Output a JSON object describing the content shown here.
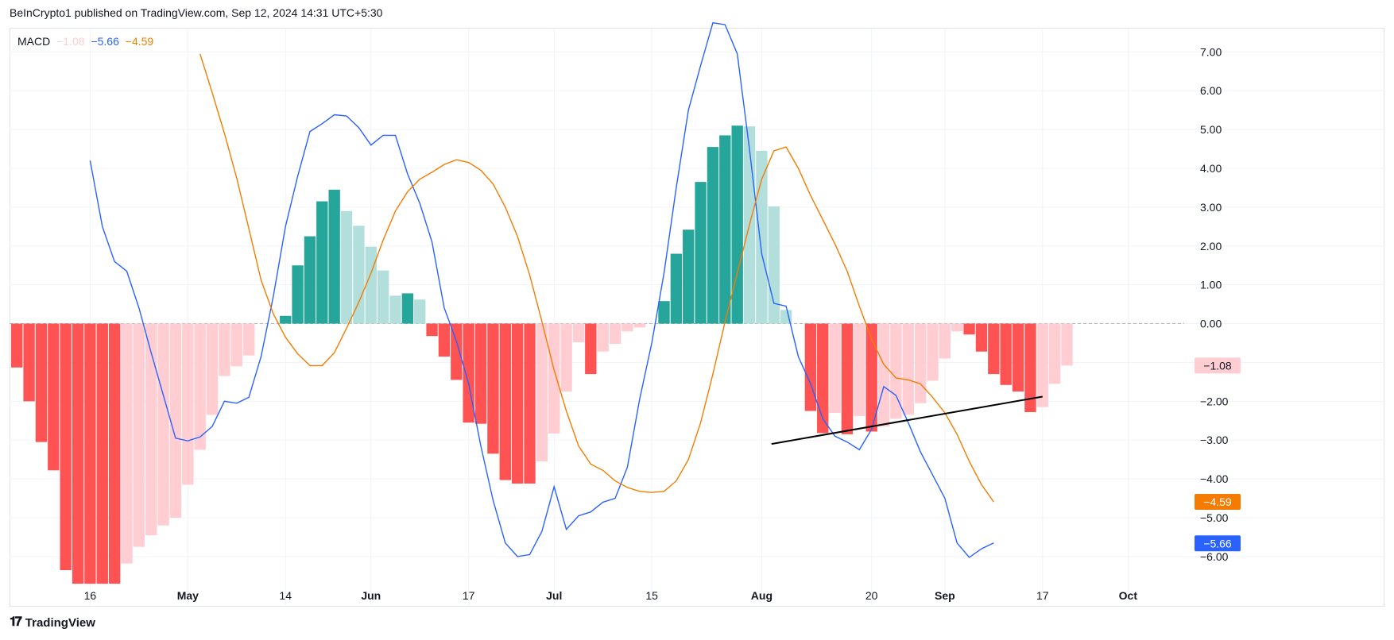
{
  "header": {
    "publisher_line": "BeInCrypto1 published on TradingView.com, Sep 12, 2024 14:31 UTC+5:30"
  },
  "legend": {
    "name": "MACD",
    "histogram_value": "−1.08",
    "macd_value": "−5.66",
    "signal_value": "−4.59"
  },
  "footer": {
    "brand": "TradingView"
  },
  "colors": {
    "macd": "#2962ff",
    "signal": "#f57c00",
    "hist_pos_strong": "#26a69a",
    "hist_pos_weak": "#b2dfdb",
    "hist_neg_strong": "#ff5252",
    "hist_neg_weak": "#ffcdd2",
    "trendline": "#000000",
    "grid": "#f0f3fa",
    "zero_line": "#b2b5be"
  },
  "chart_data": {
    "type": "line",
    "title": "MACD",
    "y_ticks": [
      "7.00",
      "6.00",
      "5.00",
      "4.00",
      "3.00",
      "2.00",
      "1.00",
      "0.00",
      "−1.00",
      "−2.00",
      "−3.00",
      "−4.00",
      "−5.00",
      "−6.00"
    ],
    "y_tick_values": [
      7,
      6,
      5,
      4,
      3,
      2,
      1,
      0,
      -1,
      -2,
      -3,
      -4,
      -5,
      -6
    ],
    "ylim": [
      -6.8,
      7.6
    ],
    "x_labels": [
      {
        "text": "16",
        "index": 6,
        "bold": false
      },
      {
        "text": "May",
        "index": 14,
        "bold": true
      },
      {
        "text": "14",
        "index": 22,
        "bold": false
      },
      {
        "text": "Jun",
        "index": 29,
        "bold": true
      },
      {
        "text": "17",
        "index": 37,
        "bold": false
      },
      {
        "text": "Jul",
        "index": 44,
        "bold": true
      },
      {
        "text": "15",
        "index": 52,
        "bold": false
      },
      {
        "text": "Aug",
        "index": 61,
        "bold": true
      },
      {
        "text": "20",
        "index": 70,
        "bold": false
      },
      {
        "text": "Sep",
        "index": 76,
        "bold": true
      },
      {
        "text": "17",
        "index": 84,
        "bold": false
      },
      {
        "text": "Oct",
        "index": 91,
        "bold": true
      }
    ],
    "x_range": [
      -0.6,
      95.6
    ],
    "histogram": [
      -1.13,
      -2.0,
      -3.05,
      -3.78,
      -6.35,
      -6.7,
      -6.7,
      -6.7,
      -6.7,
      -6.18,
      -5.75,
      -5.45,
      -5.2,
      -5.0,
      -4.15,
      -3.25,
      -2.35,
      -1.35,
      -1.1,
      -0.82,
      0,
      0,
      0.2,
      1.5,
      2.25,
      3.15,
      3.45,
      2.9,
      2.52,
      1.98,
      1.37,
      0.72,
      0.78,
      0.62,
      -0.32,
      -0.85,
      -1.45,
      -2.55,
      -2.58,
      -3.35,
      -4.03,
      -4.12,
      -4.12,
      -3.55,
      -2.83,
      -1.75,
      -0.48,
      -1.3,
      -0.72,
      -0.52,
      -0.2,
      -0.1,
      0,
      0.58,
      1.8,
      2.42,
      3.65,
      4.55,
      4.85,
      5.1,
      5.08,
      4.45,
      3.02,
      0.35,
      0,
      -2.25,
      -2.82,
      -2.3,
      -2.85,
      -2.38,
      -2.78,
      -2.65,
      -2.45,
      -2.35,
      -2.05,
      -1.47,
      -0.9,
      -0.2,
      -0.28,
      -0.72,
      -1.3,
      -1.58,
      -1.75,
      -2.28,
      -2.15,
      -1.55,
      -1.08
    ],
    "series": [
      {
        "name": "MACD",
        "values": [
          null,
          null,
          null,
          null,
          null,
          null,
          4.2,
          2.5,
          1.6,
          1.35,
          0.4,
          -0.75,
          -1.85,
          -2.95,
          -3.02,
          -2.92,
          -2.65,
          -2.0,
          -2.05,
          -1.9,
          -0.85,
          0.7,
          2.5,
          3.8,
          4.95,
          5.15,
          5.38,
          5.35,
          5.05,
          4.6,
          4.85,
          4.85,
          3.85,
          3.1,
          2.1,
          0.4,
          -0.45,
          -1.55,
          -3.15,
          -4.55,
          -5.65,
          -6.0,
          -5.95,
          -5.35,
          -4.2,
          -5.3,
          -4.95,
          -4.85,
          -4.6,
          -4.5,
          -3.7,
          -1.95,
          -0.5,
          1.3,
          3.5,
          5.5,
          6.65,
          7.75,
          7.7,
          6.95,
          4.5,
          1.8,
          0.52,
          0.45,
          -0.85,
          -1.55,
          -2.45,
          -2.9,
          -3.05,
          -3.25,
          -2.72,
          -1.62,
          -1.85,
          -2.55,
          -3.3,
          -3.9,
          -4.5,
          -5.65,
          -6.02,
          -5.8,
          -5.65
        ],
        "x_start": 0
      },
      {
        "name": "Signal",
        "values": [
          6.95,
          5.95,
          4.9,
          3.75,
          2.45,
          1.12,
          0.25,
          -0.35,
          -0.78,
          -1.08,
          -1.08,
          -0.75,
          -0.12,
          0.55,
          1.3,
          2.15,
          2.9,
          3.4,
          3.72,
          3.9,
          4.1,
          4.22,
          4.15,
          3.95,
          3.6,
          3.0,
          2.25,
          1.25,
          0.05,
          -1.2,
          -2.25,
          -3.15,
          -3.62,
          -3.78,
          -4.05,
          -4.22,
          -4.32,
          -4.35,
          -4.32,
          -4.05,
          -3.5,
          -2.55,
          -1.3,
          0.05,
          1.3,
          2.55,
          3.72,
          4.45,
          4.55,
          4.0,
          3.3,
          2.68,
          2.05,
          1.35,
          0.45,
          -0.4,
          -1.05,
          -1.4,
          -1.45,
          -1.55,
          -1.9,
          -2.3,
          -2.85,
          -3.55,
          -4.15,
          -4.59
        ],
        "x_start": 15
      }
    ],
    "trendline": {
      "from": [
        61.8,
        -3.1
      ],
      "to": [
        84,
        -1.88
      ]
    },
    "zero_line": true,
    "grid": true,
    "price_tags": [
      {
        "value": -1.08,
        "text": "−1.08",
        "bg": "#ffcdd2",
        "fg": "#131722"
      },
      {
        "value": -4.59,
        "text": "−4.59",
        "bg": "#f57c00",
        "fg": "#ffffff"
      },
      {
        "value": -5.66,
        "text": "−5.66",
        "bg": "#2962ff",
        "fg": "#ffffff"
      }
    ]
  }
}
